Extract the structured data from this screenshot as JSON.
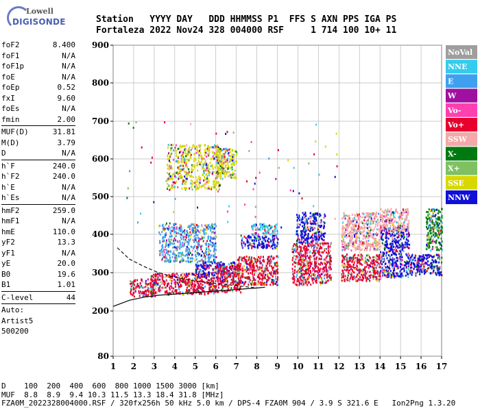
{
  "logo": {
    "line1": "Lowell",
    "line2": "DIGISONDE"
  },
  "header": {
    "row1": "Station   YYYY DAY   DDD HHMMSS P1  FFS S AXN PPS IGA PS",
    "row2": "Fortaleza 2022 Nov24 328 004000 RSF     1 714 100 10+ 11"
  },
  "params": {
    "group1": [
      {
        "name": "foF2",
        "value": "8.400"
      },
      {
        "name": "foF1",
        "value": "N/A"
      },
      {
        "name": "foF1p",
        "value": "N/A"
      },
      {
        "name": "foE",
        "value": "N/A"
      },
      {
        "name": "foEp",
        "value": "0.52"
      },
      {
        "name": "fxI",
        "value": "9.60"
      },
      {
        "name": "foEs",
        "value": "N/A"
      },
      {
        "name": "fmin",
        "value": "2.00"
      }
    ],
    "group2": [
      {
        "name": "MUF(D)",
        "value": "31.81"
      },
      {
        "name": "M(D)",
        "value": "3.79"
      },
      {
        "name": "D",
        "value": "N/A"
      }
    ],
    "group3": [
      {
        "name": "h`F",
        "value": "240.0"
      },
      {
        "name": "h`F2",
        "value": "240.0"
      },
      {
        "name": "h`E",
        "value": "N/A"
      },
      {
        "name": "h`Es",
        "value": "N/A"
      }
    ],
    "group4": [
      {
        "name": "hmF2",
        "value": "259.0"
      },
      {
        "name": "hmF1",
        "value": "N/A"
      },
      {
        "name": "hmE",
        "value": "110.0"
      },
      {
        "name": "yF2",
        "value": "13.3"
      },
      {
        "name": "yF1",
        "value": "N/A"
      },
      {
        "name": "yE",
        "value": "20.0"
      },
      {
        "name": "B0",
        "value": "19.6"
      },
      {
        "name": "B1",
        "value": "1.01"
      }
    ],
    "group5": [
      {
        "name": "C-level",
        "value": "44"
      }
    ],
    "auto": [
      "Auto:",
      "Artist5",
      "500200"
    ]
  },
  "legend": [
    {
      "label": "NoVal",
      "bg": "#9e9e9e",
      "fg": "#ffffff"
    },
    {
      "label": "NNE",
      "bg": "#33ccee",
      "fg": "#ffffff"
    },
    {
      "label": "E",
      "bg": "#3fa0f0",
      "fg": "#ffffff"
    },
    {
      "label": "W",
      "bg": "#a010a0",
      "fg": "#ffffff"
    },
    {
      "label": "Vo-",
      "bg": "#ff40b0",
      "fg": "#ffffff"
    },
    {
      "label": "Vo+",
      "bg": "#e8002e",
      "fg": "#ffffff"
    },
    {
      "label": "SSW",
      "bg": "#f4a8a8",
      "fg": "#ffffff"
    },
    {
      "label": "X-",
      "bg": "#007a10",
      "fg": "#ffffff"
    },
    {
      "label": "X+",
      "bg": "#80c060",
      "fg": "#ffffff"
    },
    {
      "label": "SSE",
      "bg": "#d8d800",
      "fg": "#ffffff"
    },
    {
      "label": "NNW",
      "bg": "#1010d8",
      "fg": "#ffffff"
    }
  ],
  "chart_data": {
    "type": "scatter",
    "title": "",
    "xlabel": "",
    "ylabel": "",
    "xlim": [
      1,
      17
    ],
    "ylim": [
      80,
      900
    ],
    "xticks": [
      "1",
      "2",
      "3",
      "4",
      "5",
      "6",
      "7",
      "8",
      "9",
      "10",
      "11",
      "12",
      "13",
      "14",
      "15",
      "16",
      "17"
    ],
    "yticks": [
      "80",
      "200",
      "300",
      "400",
      "500",
      "600",
      "700",
      "800",
      "900"
    ],
    "clusters": [
      {
        "x": [
          1.8,
          3.1
        ],
        "y": [
          240,
          285
        ],
        "color": "#e8002e"
      },
      {
        "x": [
          2.8,
          6.0
        ],
        "y": [
          245,
          300
        ],
        "color": "#e8002e"
      },
      {
        "x": [
          3.2,
          6.0
        ],
        "y": [
          330,
          430
        ],
        "color": "#3fa0f0"
      },
      {
        "x": [
          5.0,
          7.0
        ],
        "y": [
          290,
          330
        ],
        "color": "#1010d8"
      },
      {
        "x": [
          3.6,
          6.2
        ],
        "y": [
          520,
          640
        ],
        "color": "#d8d800"
      },
      {
        "x": [
          6.0,
          7.2
        ],
        "y": [
          250,
          320
        ],
        "color": "#e8002e"
      },
      {
        "x": [
          6.0,
          7.0
        ],
        "y": [
          550,
          630
        ],
        "color": "#d8d800"
      },
      {
        "x": [
          7.0,
          9.0
        ],
        "y": [
          270,
          345
        ],
        "color": "#e8002e"
      },
      {
        "x": [
          7.2,
          9.0
        ],
        "y": [
          365,
          400
        ],
        "color": "#1010d8"
      },
      {
        "x": [
          7.7,
          9.0
        ],
        "y": [
          400,
          430
        ],
        "color": "#33ccee"
      },
      {
        "x": [
          9.7,
          11.6
        ],
        "y": [
          270,
          380
        ],
        "color": "#e8002e"
      },
      {
        "x": [
          9.9,
          11.3
        ],
        "y": [
          380,
          460
        ],
        "color": "#1010d8"
      },
      {
        "x": [
          12.1,
          14.0
        ],
        "y": [
          280,
          350
        ],
        "color": "#e8002e"
      },
      {
        "x": [
          12.1,
          14.0
        ],
        "y": [
          360,
          460
        ],
        "color": "#f4a8a8"
      },
      {
        "x": [
          14.0,
          15.4
        ],
        "y": [
          290,
          420
        ],
        "color": "#1010d8"
      },
      {
        "x": [
          14.0,
          15.4
        ],
        "y": [
          410,
          470
        ],
        "color": "#f4a8a8"
      },
      {
        "x": [
          15.4,
          17.0
        ],
        "y": [
          295,
          350
        ],
        "color": "#1010d8"
      },
      {
        "x": [
          16.2,
          17.0
        ],
        "y": [
          360,
          470
        ],
        "color": "#007a10"
      }
    ],
    "profile_curve": {
      "x": [
        1.0,
        1.8,
        2.5,
        3.2,
        4.0,
        5.0,
        6.0,
        7.0,
        8.0,
        8.4
      ],
      "y": [
        212,
        228,
        236,
        241,
        244,
        248,
        252,
        256,
        260,
        262
      ]
    },
    "dashed_curve": {
      "x": [
        1.2,
        1.8,
        2.5,
        3.2,
        4.0,
        5.0,
        6.0,
        7.0,
        8.0
      ],
      "y": [
        365,
        335,
        316,
        300,
        288,
        278,
        272,
        266,
        260
      ]
    }
  },
  "bottom": {
    "d_row": "D    100  200  400  600  800 1000 1500 3000 [km]",
    "muf_row": "MUF  8.8  8.9  9.4 10.3 11.5 13.3 18.4 31.8 [MHz]",
    "file_row": "FZA0M_2022328004000.RSF / 320fx256h 50 kHz 5.0 km / DPS-4 FZA0M 904 / 3.9 S 321.6 E   Ion2Png 1.3.20"
  }
}
